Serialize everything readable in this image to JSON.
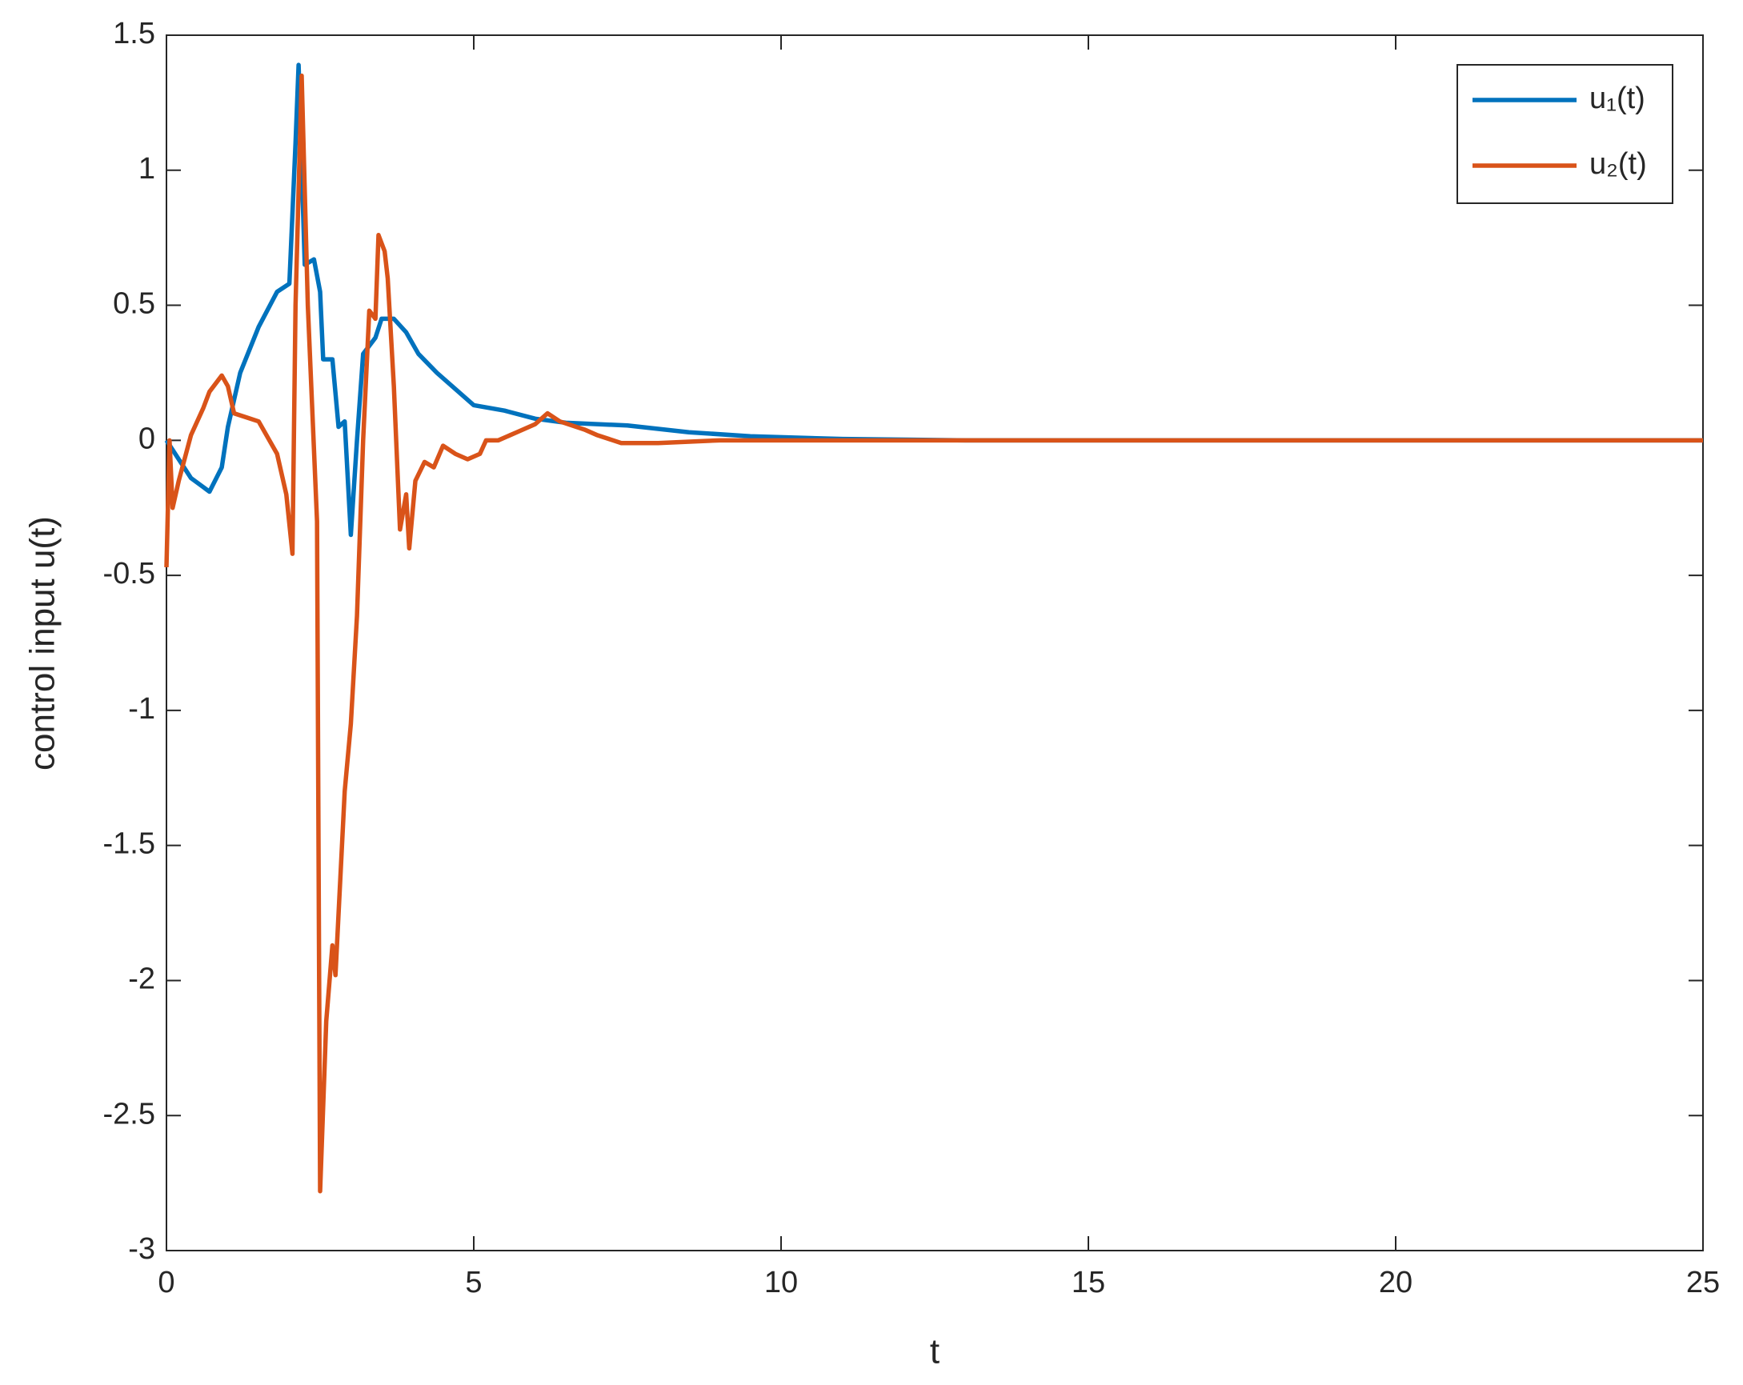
{
  "chart_data": {
    "type": "line",
    "xlabel": "t",
    "ylabel": "control input u(t)",
    "xlim": [
      0,
      25
    ],
    "ylim": [
      -3,
      1.5
    ],
    "xticks": [
      0,
      5,
      10,
      15,
      20,
      25
    ],
    "yticks": [
      -3,
      -2.5,
      -2,
      -1.5,
      -1,
      -0.5,
      0,
      0.5,
      1,
      1.5
    ],
    "grid": false,
    "legend": "upper right",
    "series": [
      {
        "name": "u₁(t)",
        "color": "#0072BD",
        "x": [
          0,
          0.2,
          0.4,
          0.7,
          0.9,
          1.0,
          1.2,
          1.5,
          1.8,
          2.0,
          2.1,
          2.15,
          2.25,
          2.4,
          2.5,
          2.55,
          2.7,
          2.8,
          2.9,
          3.0,
          3.1,
          3.2,
          3.4,
          3.5,
          3.7,
          3.9,
          4.1,
          4.4,
          4.8,
          5.0,
          5.5,
          6.0,
          6.5,
          7.5,
          8.5,
          9.5,
          11,
          13,
          25
        ],
        "values": [
          0,
          -0.07,
          -0.14,
          -0.19,
          -0.1,
          0.05,
          0.25,
          0.42,
          0.55,
          0.58,
          1.1,
          1.39,
          0.65,
          0.67,
          0.55,
          0.3,
          0.3,
          0.05,
          0.07,
          -0.35,
          0.0,
          0.32,
          0.38,
          0.45,
          0.45,
          0.4,
          0.32,
          0.25,
          0.17,
          0.13,
          0.11,
          0.08,
          0.065,
          0.055,
          0.03,
          0.015,
          0.005,
          0,
          0
        ]
      },
      {
        "name": "u₂(t)",
        "color": "#D95319",
        "x": [
          0,
          0.05,
          0.1,
          0.2,
          0.4,
          0.6,
          0.7,
          0.9,
          1.0,
          1.1,
          1.3,
          1.5,
          1.8,
          1.95,
          2.05,
          2.1,
          2.2,
          2.3,
          2.45,
          2.5,
          2.6,
          2.7,
          2.75,
          2.9,
          3.0,
          3.1,
          3.2,
          3.3,
          3.4,
          3.45,
          3.55,
          3.6,
          3.7,
          3.8,
          3.9,
          3.95,
          4.05,
          4.2,
          4.35,
          4.5,
          4.7,
          4.9,
          5.1,
          5.2,
          5.4,
          5.7,
          6.0,
          6.2,
          6.4,
          6.8,
          7.0,
          7.4,
          8.0,
          9.0,
          25
        ],
        "values": [
          -0.47,
          0,
          -0.25,
          -0.15,
          0.02,
          0.12,
          0.18,
          0.24,
          0.2,
          0.1,
          0.085,
          0.07,
          -0.05,
          -0.2,
          -0.42,
          0.5,
          1.35,
          0.5,
          -0.3,
          -2.78,
          -2.15,
          -1.87,
          -1.98,
          -1.3,
          -1.05,
          -0.65,
          0.0,
          0.48,
          0.45,
          0.76,
          0.7,
          0.6,
          0.2,
          -0.33,
          -0.2,
          -0.4,
          -0.15,
          -0.08,
          -0.1,
          -0.02,
          -0.05,
          -0.07,
          -0.05,
          0.0,
          0.0,
          0.03,
          0.06,
          0.1,
          0.07,
          0.04,
          0.02,
          -0.01,
          -0.01,
          0,
          0
        ]
      }
    ]
  }
}
